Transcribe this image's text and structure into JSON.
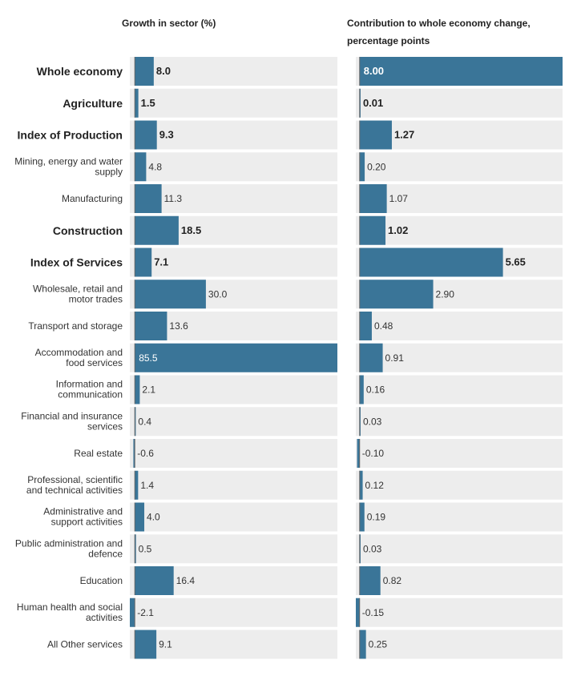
{
  "colors": {
    "bar": "#3a7598",
    "track": "#ededed",
    "axis": "#666666"
  },
  "chart_data": {
    "type": "bar",
    "orientation": "horizontal",
    "headers": {
      "left": "Growth in sector (%)",
      "right_line1": "Contribution to whole economy change,",
      "right_line2": "percentage points"
    },
    "categories": [
      [
        "Whole economy"
      ],
      [
        "Agriculture"
      ],
      [
        "Index of Production"
      ],
      [
        "Mining, energy and water",
        "supply"
      ],
      [
        "Manufacturing"
      ],
      [
        "Construction"
      ],
      [
        "Index of Services"
      ],
      [
        "Wholesale, retail and",
        "motor trades"
      ],
      [
        "Transport and storage"
      ],
      [
        "Accommodation and",
        "food services"
      ],
      [
        "Information and",
        "communication"
      ],
      [
        "Financial and insurance",
        "services"
      ],
      [
        "Real estate"
      ],
      [
        "Professional, scientific",
        "and technical activities"
      ],
      [
        "Administrative and",
        "support activities"
      ],
      [
        "Public administration and",
        "defence"
      ],
      [
        "Education"
      ],
      [
        "Human health and social",
        "activities"
      ],
      [
        "All Other services"
      ]
    ],
    "bold": [
      true,
      true,
      true,
      false,
      false,
      true,
      true,
      false,
      false,
      false,
      false,
      false,
      false,
      false,
      false,
      false,
      false,
      false,
      false
    ],
    "series": [
      {
        "name": "Growth in sector (%)",
        "labels": [
          "8.0",
          "1.5",
          "9.3",
          "4.8",
          "11.3",
          "18.5",
          "7.1",
          "30.0",
          "13.6",
          "85.5",
          "2.1",
          "0.4",
          "-0.6",
          "1.4",
          "4.0",
          "0.5",
          "16.4",
          "-2.1",
          "9.1"
        ],
        "values": [
          8.0,
          1.5,
          9.3,
          4.8,
          11.3,
          18.5,
          7.1,
          30.0,
          13.6,
          85.5,
          2.1,
          0.4,
          -0.6,
          1.4,
          4.0,
          0.5,
          16.4,
          -2.1,
          9.1
        ],
        "xlim": [
          -2.1,
          85.5
        ]
      },
      {
        "name": "Contribution to whole economy change, percentage points",
        "labels": [
          "8.00",
          "0.01",
          "1.27",
          "0.20",
          "1.07",
          "1.02",
          "5.65",
          "2.90",
          "0.48",
          "0.91",
          "0.16",
          "0.03",
          "-0.10",
          "0.12",
          "0.19",
          "0.03",
          "0.82",
          "-0.15",
          "0.25"
        ],
        "values": [
          8.0,
          0.01,
          1.27,
          0.2,
          1.07,
          1.02,
          5.65,
          2.9,
          0.48,
          0.91,
          0.16,
          0.03,
          -0.1,
          0.12,
          0.19,
          0.03,
          0.82,
          -0.15,
          0.25
        ],
        "xlim": [
          -0.15,
          8.0
        ]
      }
    ]
  }
}
